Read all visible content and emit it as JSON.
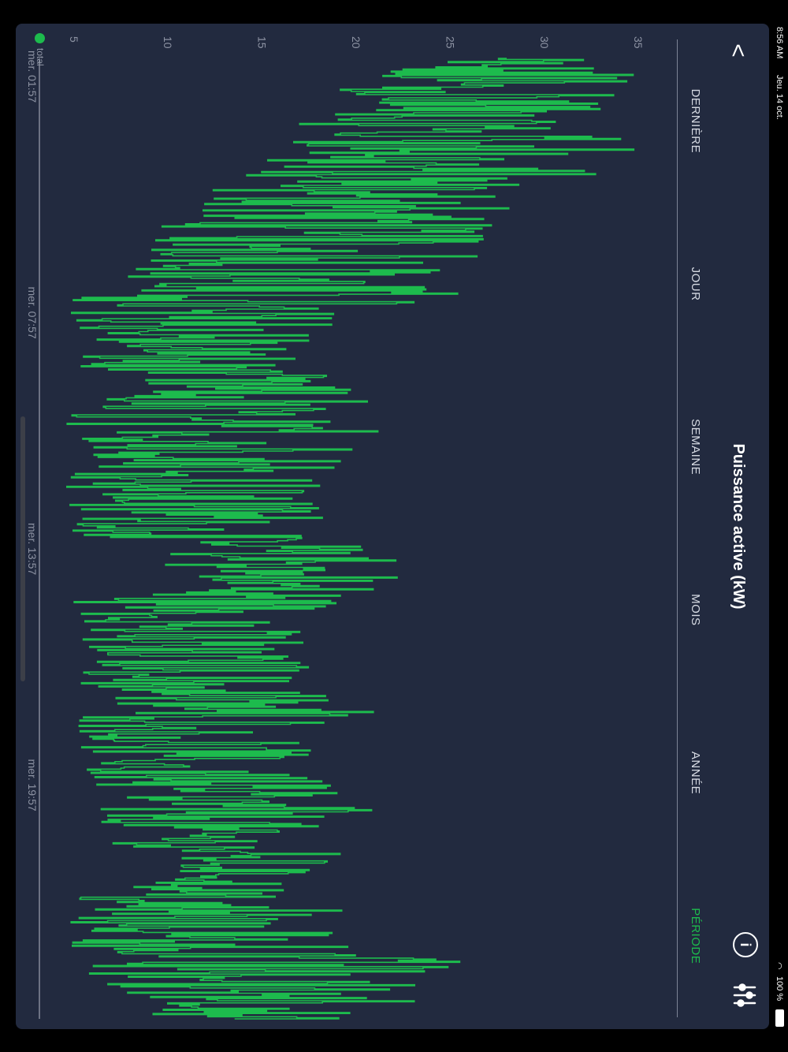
{
  "status_bar": {
    "time": "8:56 AM",
    "date": "Jeu. 14 oct.",
    "battery": "100 %",
    "wifi_icon": "wifi-icon",
    "battery_icon": "battery-icon"
  },
  "header": {
    "back_label": "<",
    "title": "Puissance active (kW)",
    "info_label": "i"
  },
  "tabs": [
    {
      "label": "DERNIÈRE",
      "active": false
    },
    {
      "label": "JOUR",
      "active": false
    },
    {
      "label": "SEMAINE",
      "active": false
    },
    {
      "label": "MOIS",
      "active": false
    },
    {
      "label": "ANNÉE",
      "active": false
    },
    {
      "label": "PÉRIODE",
      "active": true
    }
  ],
  "colors": {
    "background": "#222a3f",
    "accent": "#1dbb4d",
    "line": "#1dbb4d",
    "axis": "#8d93a3"
  },
  "chart_data": {
    "type": "line",
    "title": "Puissance active (kW)",
    "xlabel": "",
    "ylabel": "",
    "y_ticks": [
      "5",
      "10",
      "15",
      "20",
      "25",
      "30",
      "35"
    ],
    "ylim": [
      3.5,
      36.5
    ],
    "x_ticks": [
      "mer. 01:57",
      "mer. 07:57",
      "mer. 13:57",
      "mer. 19:57"
    ],
    "x_tick_hours": [
      0,
      6,
      12,
      18
    ],
    "x_range_hours": [
      0,
      24.4
    ],
    "grid": false,
    "legend_position": "bottom-left",
    "series": [
      {
        "name": "total",
        "x_hours": [
          0.0,
          0.8,
          1.6,
          2.3,
          3.0,
          3.6,
          4.3,
          4.9,
          5.4,
          6.0,
          6.6,
          7.2,
          7.8,
          8.2,
          8.5,
          9.0,
          9.5,
          10.2,
          10.8,
          11.2,
          11.5,
          12.0,
          12.6,
          13.2,
          13.8,
          14.4,
          15.0,
          15.2,
          15.6,
          16.0,
          16.6,
          17.2,
          17.6,
          18.0,
          18.6,
          19.1,
          19.7,
          20.3,
          20.8,
          21.2,
          21.5,
          21.6,
          22.0,
          22.5,
          23.0,
          23.4,
          24.0,
          24.4
        ],
        "y": [
          28,
          33,
          25,
          31,
          22,
          29,
          24,
          27,
          23,
          21,
          12,
          7,
          16,
          9,
          13,
          11,
          6,
          10,
          14,
          8,
          12,
          9,
          15,
          11,
          6,
          10,
          5,
          7,
          12,
          9,
          15,
          8,
          13,
          6,
          11,
          9,
          14,
          7,
          10,
          12,
          16,
          6,
          5,
          8,
          18,
          14,
          10,
          8
        ],
        "min": [
          20.5,
          19,
          17,
          16.5,
          11,
          12,
          9.5,
          8.5,
          8,
          5,
          4.6,
          4.8,
          4.8,
          8,
          4.7,
          4.5,
          4.5,
          4.6,
          4.5,
          4.5,
          4.7,
          4.6,
          9.5,
          10,
          5,
          4.9,
          5,
          5,
          5.2,
          5.2,
          5.2,
          5.2,
          5.3,
          5.3,
          5.3,
          5.2,
          5.2,
          10,
          11,
          5,
          4.5,
          4.5,
          4.8,
          4.9,
          5,
          6,
          9,
          7
        ],
        "max": [
          35,
          35.5,
          34,
          36,
          32.5,
          30,
          29,
          27.5,
          24.5,
          26,
          19,
          18,
          17.5,
          19,
          23,
          17.5,
          21.5,
          19.5,
          19,
          17.5,
          19.5,
          18,
          22,
          23.5,
          20,
          18,
          17,
          16.5,
          19.5,
          17,
          21.5,
          15.5,
          19,
          16,
          20,
          21.5,
          17.5,
          19.5,
          17,
          16,
          15.5,
          21,
          17,
          22,
          26.5,
          25,
          24.5,
          21
        ]
      }
    ]
  }
}
